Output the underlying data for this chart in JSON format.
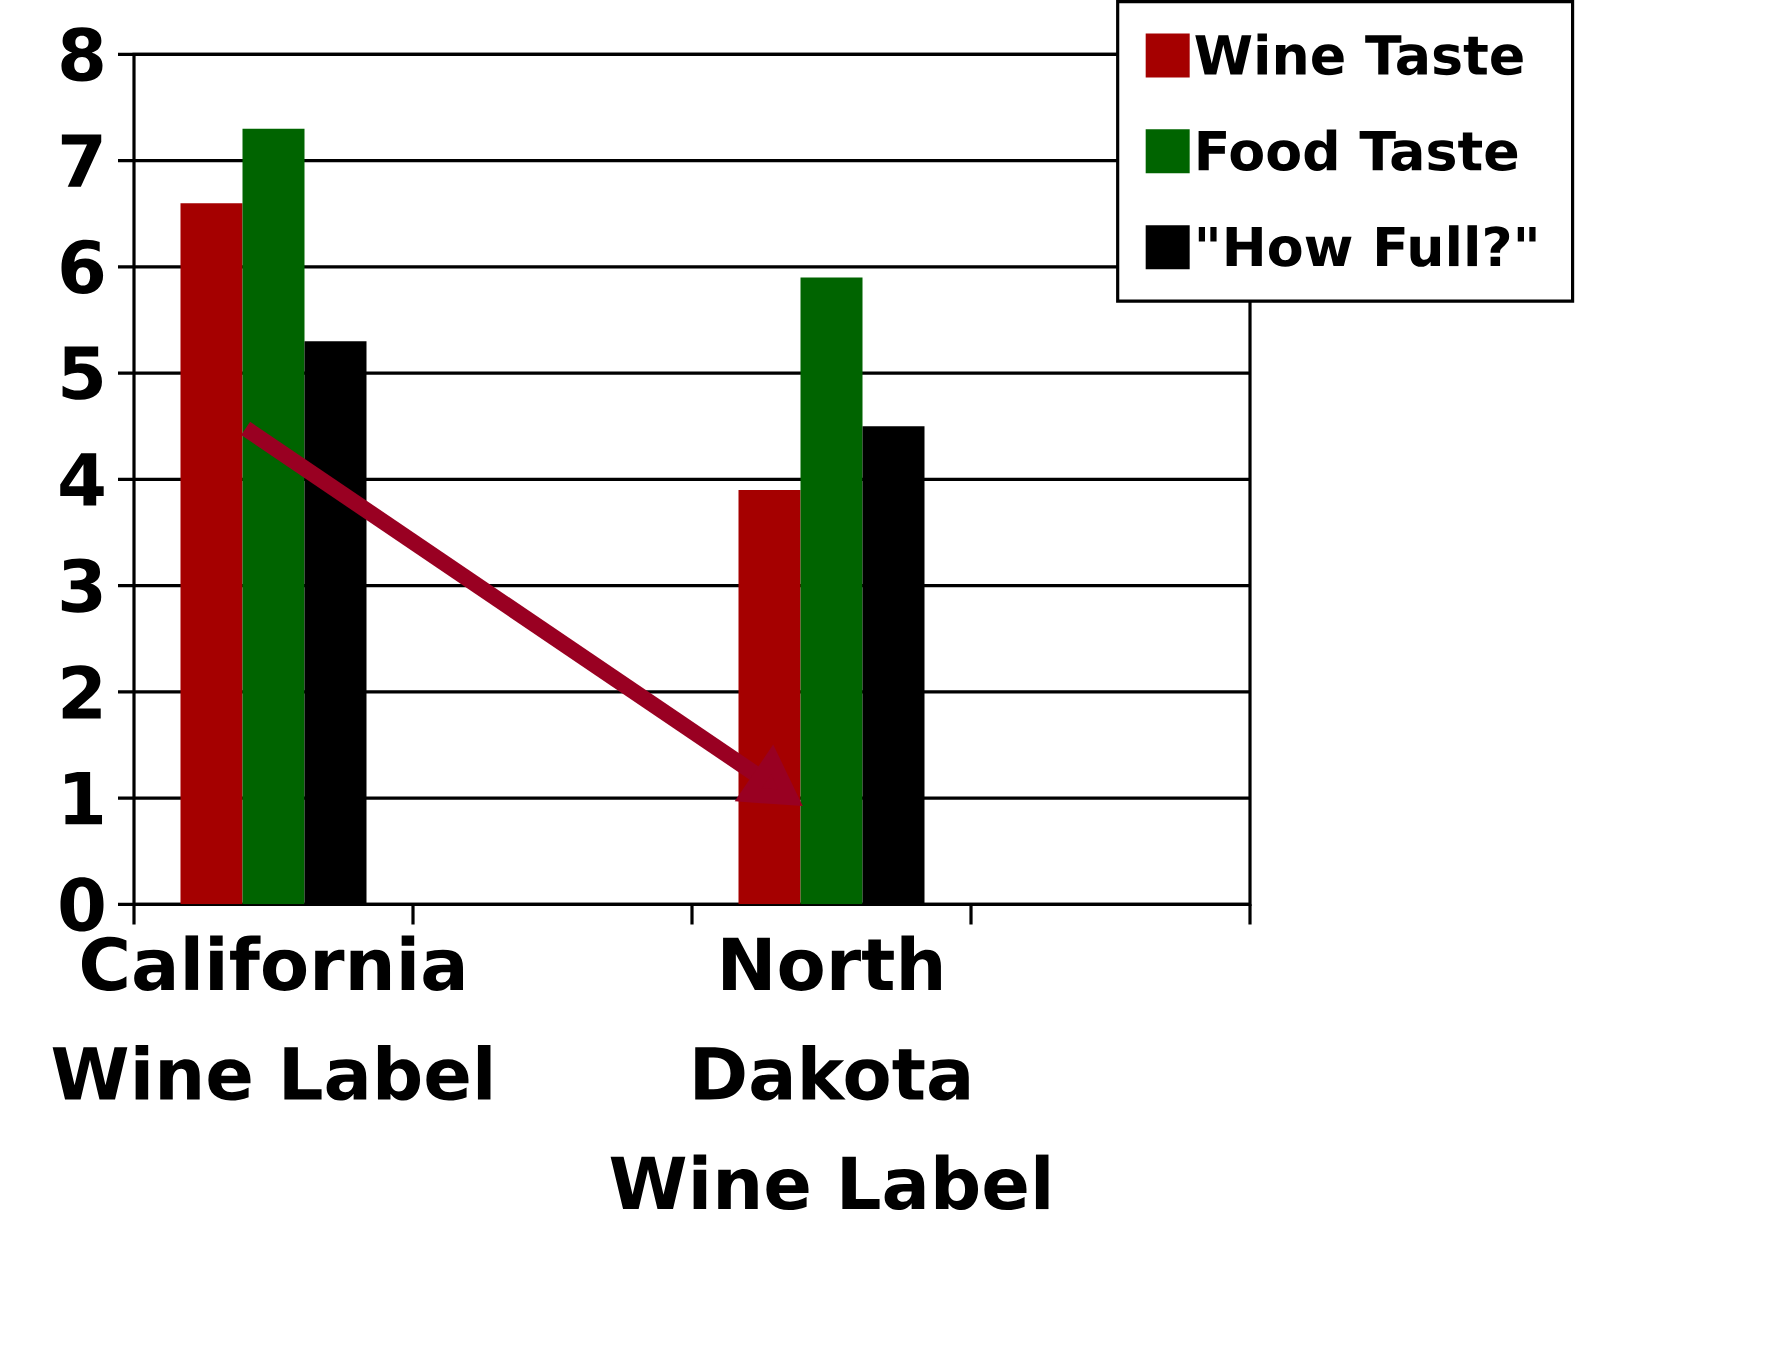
{
  "chart_data": {
    "type": "bar",
    "categories": [
      "California Wine Label",
      null,
      "North Dakota Wine Label",
      null
    ],
    "series": [
      {
        "name": "Wine Taste",
        "color": "#a50000",
        "values": [
          6.6,
          null,
          3.9,
          null
        ]
      },
      {
        "name": "Food Taste",
        "color": "#006400",
        "values": [
          7.3,
          null,
          5.9,
          null
        ]
      },
      {
        "name": "\"How Full?\"",
        "color": "#000000",
        "values": [
          5.3,
          null,
          4.5,
          null
        ]
      }
    ],
    "ylim": [
      0,
      8
    ],
    "yticks": [
      0,
      1,
      2,
      3,
      4,
      5,
      6,
      7,
      8
    ],
    "grid": "y",
    "legend": "top right"
  }
}
